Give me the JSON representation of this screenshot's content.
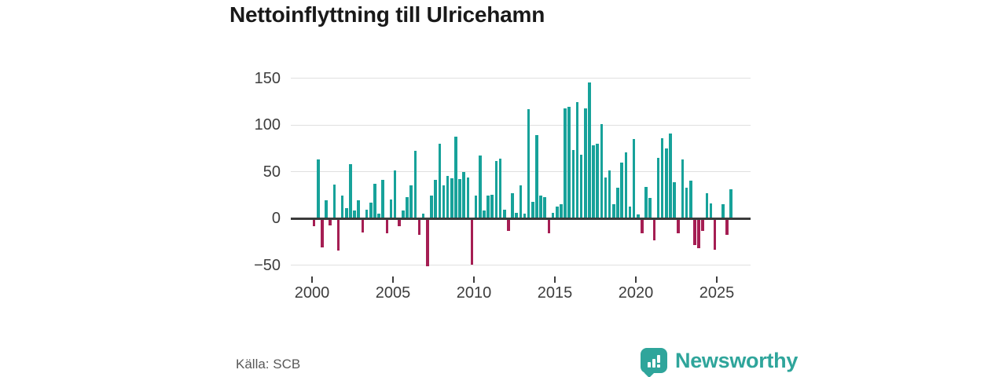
{
  "title": "Nettoinflyttning till Ulricehamn",
  "source": "Källa: SCB",
  "logo": {
    "text": "Newsworthy"
  },
  "chart_data": {
    "type": "bar",
    "title": "Nettoinflyttning till Ulricehamn",
    "xlabel": "",
    "ylabel": "",
    "ylim": [
      -50,
      150
    ],
    "grid": true,
    "legend": "none",
    "frequency": "quarterly",
    "y_ticks": [
      150,
      100,
      50,
      0,
      -50
    ],
    "y_tick_labels": [
      "150",
      "100",
      "50",
      "0",
      "−50"
    ],
    "x_tick_years": [
      2000,
      2005,
      2010,
      2015,
      2020,
      2025
    ],
    "x_tick_labels": [
      "2000",
      "2005",
      "2010",
      "2015",
      "2020",
      "2025"
    ],
    "colors": {
      "positive": "#17a29a",
      "negative": "#a51e53",
      "gridline": "#e0e0e0",
      "zero_line": "#3b3b3b"
    },
    "categories": [
      "2000 Q1",
      "2000 Q2",
      "2000 Q3",
      "2000 Q4",
      "2001 Q1",
      "2001 Q2",
      "2001 Q3",
      "2001 Q4",
      "2002 Q1",
      "2002 Q2",
      "2002 Q3",
      "2002 Q4",
      "2003 Q1",
      "2003 Q2",
      "2003 Q3",
      "2003 Q4",
      "2004 Q1",
      "2004 Q2",
      "2004 Q3",
      "2004 Q4",
      "2005 Q1",
      "2005 Q2",
      "2005 Q3",
      "2005 Q4",
      "2006 Q1",
      "2006 Q2",
      "2006 Q3",
      "2006 Q4",
      "2007 Q1",
      "2007 Q2",
      "2007 Q3",
      "2007 Q4",
      "2008 Q1",
      "2008 Q2",
      "2008 Q3",
      "2008 Q4",
      "2009 Q1",
      "2009 Q2",
      "2009 Q3",
      "2009 Q4",
      "2010 Q1",
      "2010 Q2",
      "2010 Q3",
      "2010 Q4",
      "2011 Q1",
      "2011 Q2",
      "2011 Q3",
      "2011 Q4",
      "2012 Q1",
      "2012 Q2",
      "2012 Q3",
      "2012 Q4",
      "2013 Q1",
      "2013 Q2",
      "2013 Q3",
      "2013 Q4",
      "2014 Q1",
      "2014 Q2",
      "2014 Q3",
      "2014 Q4",
      "2015 Q1",
      "2015 Q2",
      "2015 Q3",
      "2015 Q4",
      "2016 Q1",
      "2016 Q2",
      "2016 Q3",
      "2016 Q4",
      "2017 Q1",
      "2017 Q2",
      "2017 Q3",
      "2017 Q4",
      "2018 Q1",
      "2018 Q2",
      "2018 Q3",
      "2018 Q4",
      "2019 Q1",
      "2019 Q2",
      "2019 Q3",
      "2019 Q4",
      "2020 Q1",
      "2020 Q2",
      "2020 Q3",
      "2020 Q4",
      "2021 Q1",
      "2021 Q2",
      "2021 Q3",
      "2021 Q4",
      "2022 Q1",
      "2022 Q2",
      "2022 Q3",
      "2022 Q4",
      "2023 Q1",
      "2023 Q2",
      "2023 Q3",
      "2023 Q4",
      "2024 Q1",
      "2024 Q2",
      "2024 Q3",
      "2024 Q4",
      "2025 Q1",
      "2025 Q2",
      "2025 Q3",
      "2025 Q4"
    ],
    "values": [
      -7,
      63,
      -30,
      19,
      -6,
      36,
      -33,
      24,
      11,
      58,
      8,
      19,
      -14,
      9,
      17,
      37,
      5,
      41,
      -15,
      20,
      51,
      -7,
      8,
      23,
      35,
      72,
      -16,
      5,
      -50,
      24,
      41,
      80,
      35,
      45,
      43,
      87,
      42,
      50,
      44,
      -48,
      24,
      67,
      8,
      24,
      25,
      61,
      64,
      9,
      -12,
      27,
      6,
      35,
      5,
      117,
      18,
      89,
      24,
      23,
      -15,
      6,
      13,
      15,
      118,
      119,
      73,
      124,
      68,
      118,
      145,
      78,
      80,
      101,
      44,
      51,
      15,
      33,
      60,
      71,
      13,
      85,
      4,
      -15,
      34,
      22,
      -22,
      65,
      86,
      75,
      91,
      39,
      -15,
      63,
      33,
      40,
      -27,
      -31,
      -12,
      27,
      16,
      -32,
      0,
      15,
      -16,
      31
    ]
  }
}
